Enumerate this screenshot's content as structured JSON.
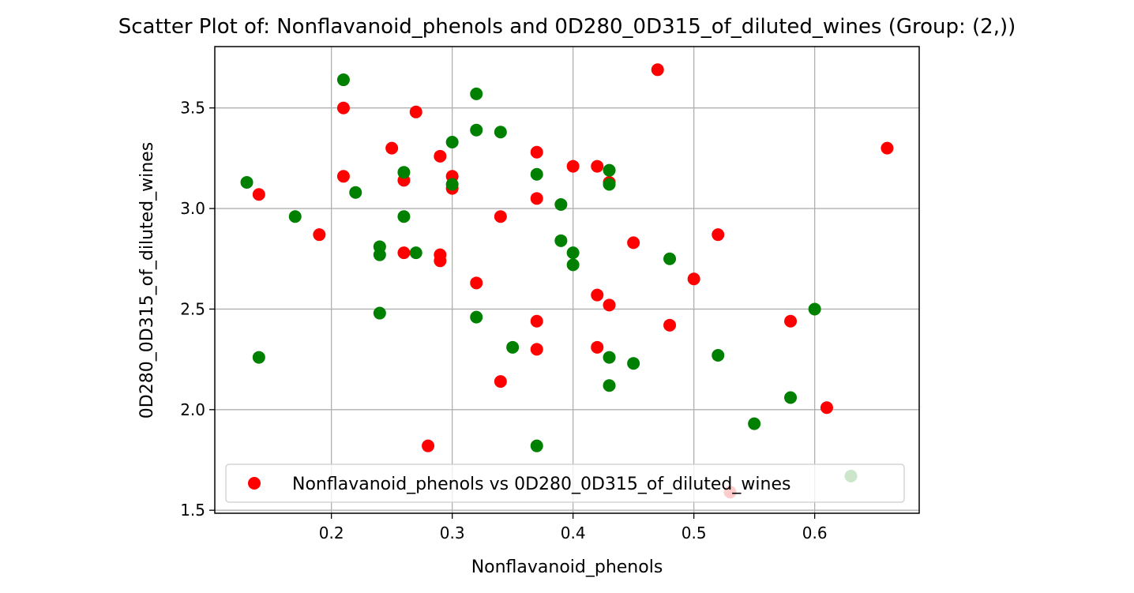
{
  "chart_data": {
    "type": "scatter",
    "title": "Scatter Plot of: Nonflavanoid_phenols and 0D280_0D315_of_diluted_wines (Group: (2,))",
    "xlabel": "Nonflavanoid_phenols",
    "ylabel": "0D280_0D315_of_diluted_wines",
    "xlim": [
      0.1035,
      0.6865
    ],
    "ylim": [
      1.485,
      3.805
    ],
    "xticks": [
      0.2,
      0.3,
      0.4,
      0.5,
      0.6
    ],
    "xtick_labels": [
      "0.2",
      "0.3",
      "0.4",
      "0.5",
      "0.6"
    ],
    "yticks": [
      1.5,
      2.0,
      2.5,
      3.0,
      3.5
    ],
    "ytick_labels": [
      "1.5",
      "2.0",
      "2.5",
      "3.0",
      "3.5"
    ],
    "grid": true,
    "legend_position": "lower-left",
    "series": [
      {
        "name": "Nonflavanoid_phenols vs 0D280_0D315_of_diluted_wines",
        "color": "#ff0000",
        "points": [
          [
            0.47,
            3.69
          ],
          [
            0.21,
            3.5
          ],
          [
            0.27,
            3.48
          ],
          [
            0.25,
            3.3
          ],
          [
            0.66,
            3.3
          ],
          [
            0.37,
            3.28
          ],
          [
            0.29,
            3.26
          ],
          [
            0.4,
            3.21
          ],
          [
            0.42,
            3.21
          ],
          [
            0.21,
            3.16
          ],
          [
            0.3,
            3.16
          ],
          [
            0.26,
            3.14
          ],
          [
            0.43,
            3.13
          ],
          [
            0.3,
            3.1
          ],
          [
            0.14,
            3.07
          ],
          [
            0.37,
            3.05
          ],
          [
            0.34,
            2.96
          ],
          [
            0.19,
            2.87
          ],
          [
            0.52,
            2.87
          ],
          [
            0.45,
            2.83
          ],
          [
            0.26,
            2.78
          ],
          [
            0.29,
            2.77
          ],
          [
            0.29,
            2.74
          ],
          [
            0.5,
            2.65
          ],
          [
            0.32,
            2.63
          ],
          [
            0.42,
            2.57
          ],
          [
            0.43,
            2.52
          ],
          [
            0.37,
            2.44
          ],
          [
            0.58,
            2.44
          ],
          [
            0.48,
            2.42
          ],
          [
            0.42,
            2.31
          ],
          [
            0.37,
            2.3
          ],
          [
            0.34,
            2.14
          ],
          [
            0.61,
            2.01
          ],
          [
            0.28,
            1.82
          ],
          [
            0.53,
            1.59
          ]
        ]
      },
      {
        "name": "",
        "color": "#008000",
        "points": [
          [
            0.21,
            3.64
          ],
          [
            0.32,
            3.57
          ],
          [
            0.32,
            3.39
          ],
          [
            0.34,
            3.38
          ],
          [
            0.3,
            3.33
          ],
          [
            0.43,
            3.19
          ],
          [
            0.26,
            3.18
          ],
          [
            0.37,
            3.17
          ],
          [
            0.13,
            3.13
          ],
          [
            0.3,
            3.12
          ],
          [
            0.43,
            3.12
          ],
          [
            0.22,
            3.08
          ],
          [
            0.39,
            3.02
          ],
          [
            0.17,
            2.96
          ],
          [
            0.26,
            2.96
          ],
          [
            0.39,
            2.84
          ],
          [
            0.24,
            2.81
          ],
          [
            0.27,
            2.78
          ],
          [
            0.4,
            2.78
          ],
          [
            0.24,
            2.77
          ],
          [
            0.48,
            2.75
          ],
          [
            0.4,
            2.72
          ],
          [
            0.6,
            2.5
          ],
          [
            0.24,
            2.48
          ],
          [
            0.32,
            2.46
          ],
          [
            0.35,
            2.31
          ],
          [
            0.52,
            2.27
          ],
          [
            0.14,
            2.26
          ],
          [
            0.43,
            2.26
          ],
          [
            0.45,
            2.23
          ],
          [
            0.43,
            2.12
          ],
          [
            0.58,
            2.06
          ],
          [
            0.55,
            1.93
          ],
          [
            0.37,
            1.82
          ],
          [
            0.63,
            1.67
          ]
        ]
      }
    ]
  }
}
